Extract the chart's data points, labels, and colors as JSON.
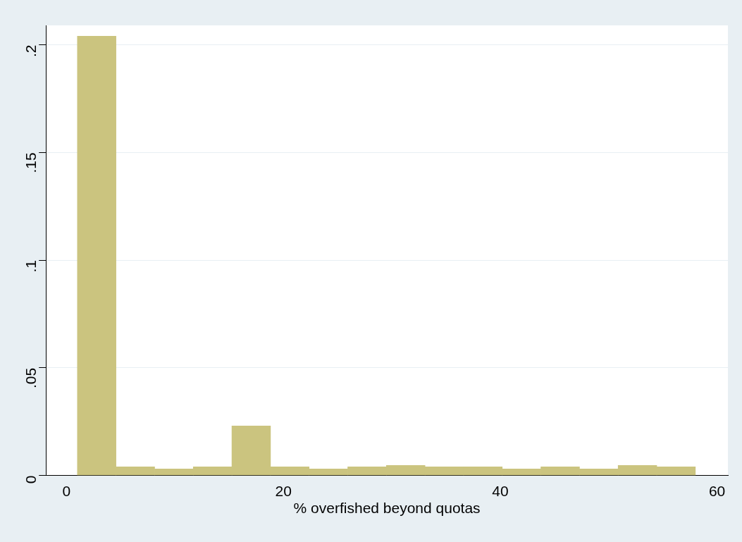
{
  "chart_data": {
    "type": "histogram",
    "xlabel": "% overfished beyond quotas",
    "bins": [
      1,
      4.5625,
      8.125,
      11.6875,
      15.25,
      18.8125,
      22.375,
      25.9375,
      29.5,
      33.0625,
      36.625,
      40.1875,
      43.75,
      47.3125,
      50.875,
      54.4375,
      58
    ],
    "values": [
      0.204,
      0.004,
      0.003,
      0.004,
      0.023,
      0.004,
      0.003,
      0.004,
      0.0047,
      0.004,
      0.004,
      0.003,
      0.004,
      0.003,
      0.0047,
      0.004
    ],
    "color": "#cbc47f",
    "xlim": [
      -1.9,
      61
    ],
    "xticks": [
      0,
      20,
      40,
      60
    ],
    "ylim": [
      0,
      0.209
    ],
    "yticks": [
      0,
      {
        "value": 0.05,
        "label": ".05"
      },
      {
        "value": 0.1,
        "label": ".1"
      },
      {
        "value": 0.15,
        "label": ".15"
      },
      {
        "value": 0.2,
        "label": ".2"
      }
    ],
    "grid": "y",
    "legend": false
  }
}
